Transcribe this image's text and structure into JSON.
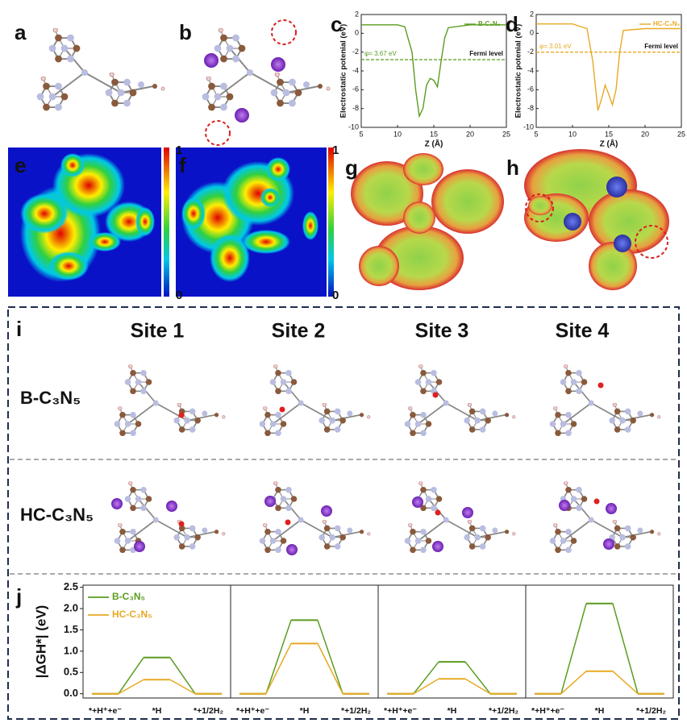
{
  "panel_labels": [
    "a",
    "b",
    "c",
    "d",
    "e",
    "f",
    "g",
    "h",
    "i",
    "j"
  ],
  "heatmaps": [
    {
      "colorbar_ticks": [
        1,
        0
      ]
    },
    {
      "colorbar_ticks": [
        1,
        0
      ]
    }
  ],
  "panel_i": {
    "columns": [
      "Site 1",
      "Site 2",
      "Site 3",
      "Site 4"
    ],
    "rows": [
      "B-C₃N₅",
      "HC-C₃N₅"
    ]
  },
  "chart_data": [
    {
      "type": "line",
      "xlabel": "Z (Å)",
      "ylabel": "Electrostatic potenial (eV)",
      "xlim": [
        5,
        25
      ],
      "ylim": [
        -10,
        2
      ],
      "xticks": [
        5,
        10,
        15,
        20,
        25
      ],
      "yticks": [
        2,
        0,
        -2,
        -4,
        -6,
        -8,
        -10
      ],
      "series": [
        {
          "name": "B-C₃N₅",
          "color": "#5b9b1f",
          "x": [
            5,
            10,
            11,
            12,
            12.5,
            13,
            13.5,
            14,
            14.5,
            15,
            15.5,
            16,
            16.5,
            17,
            20,
            25
          ],
          "values": [
            0.9,
            0.9,
            0.7,
            -2,
            -6,
            -8.8,
            -8,
            -5.5,
            -4.8,
            -5,
            -5.7,
            -3,
            -0.5,
            0.6,
            0.9,
            0.9
          ]
        }
      ],
      "hline": {
        "value": -2.8,
        "color": "#5b9b1f",
        "label": "Fermi level"
      },
      "annotation": "φ= 3.67 eV"
    },
    {
      "type": "line",
      "xlabel": "Z (Å)",
      "ylabel": "Electrostatic potenial (eV)",
      "xlim": [
        5,
        25
      ],
      "ylim": [
        -10,
        2
      ],
      "xticks": [
        5,
        10,
        15,
        20,
        25
      ],
      "yticks": [
        2,
        0,
        -2,
        -4,
        -6,
        -8,
        -10
      ],
      "series": [
        {
          "name": "HC-C₃N₅",
          "color": "#e8a923",
          "x": [
            5,
            10,
            12,
            12.8,
            13.5,
            14,
            14.5,
            15,
            15.5,
            16,
            16.5,
            17,
            20,
            25
          ],
          "values": [
            1,
            1,
            0.5,
            -3,
            -8.2,
            -7,
            -5.5,
            -6.5,
            -7.6,
            -6,
            -2,
            0.3,
            0.5,
            0.5
          ]
        }
      ],
      "hline": {
        "value": -2,
        "color": "#e8a923",
        "label": "Fermi level"
      },
      "annotation": "φ= 3.01 eV"
    },
    {
      "type": "energy",
      "ylabel": "|ΔGH*| (eV)",
      "ylim": [
        -0.1,
        2.55
      ],
      "yticks": [
        {
          "value": 0,
          "label": "0.0"
        },
        0.5,
        {
          "value": 1,
          "label": "1.0"
        },
        1.5,
        {
          "value": 2,
          "label": "2.0"
        },
        2.5
      ],
      "categories": [
        "*+H⁺+e⁻",
        "*H",
        "*+1/2H₂"
      ],
      "series": [
        {
          "name": "B-C₃N₅",
          "color": "#5b9b1f",
          "values": [
            [
              0,
              0.85,
              0
            ],
            [
              0,
              1.73,
              0
            ],
            [
              0,
              0.75,
              0
            ],
            [
              0,
              2.12,
              0
            ]
          ]
        },
        {
          "name": "HC-C₃N₅",
          "color": "#e8a923",
          "values": [
            [
              0,
              0.33,
              0
            ],
            [
              0,
              1.18,
              0
            ],
            [
              0,
              0.35,
              0
            ],
            [
              0,
              0.53,
              0
            ]
          ]
        }
      ]
    }
  ]
}
